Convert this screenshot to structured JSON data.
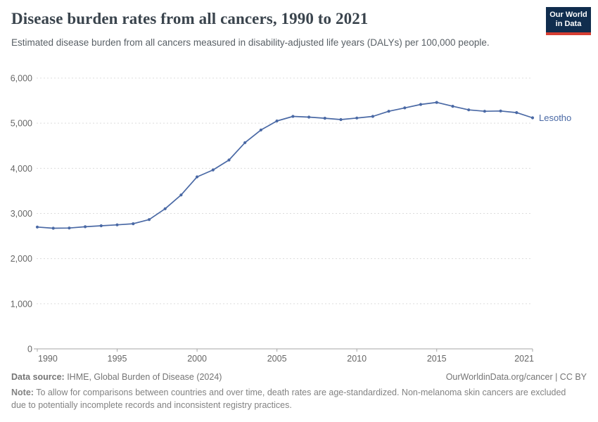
{
  "header": {
    "title": "Disease burden rates from all cancers, 1990 to 2021",
    "subtitle": "Estimated disease burden from all cancers measured in disability-adjusted life years (DALYs) per 100,000 people.",
    "logo": {
      "line1": "Our World",
      "line2": "in Data"
    }
  },
  "chart_data": {
    "type": "line",
    "title": "Disease burden rates from all cancers, 1990 to 2021",
    "entity": "Lesotho",
    "x": [
      1990,
      1991,
      1992,
      1993,
      1994,
      1995,
      1996,
      1997,
      1998,
      1999,
      2000,
      2001,
      2002,
      2003,
      2004,
      2005,
      2006,
      2007,
      2008,
      2009,
      2010,
      2011,
      2012,
      2013,
      2014,
      2015,
      2016,
      2017,
      2018,
      2019,
      2020,
      2021
    ],
    "values": [
      2700,
      2672,
      2678,
      2705,
      2728,
      2748,
      2772,
      2865,
      3105,
      3410,
      3810,
      3965,
      4185,
      4570,
      4850,
      5050,
      5150,
      5135,
      5110,
      5080,
      5115,
      5150,
      5265,
      5340,
      5415,
      5460,
      5375,
      5295,
      5265,
      5270,
      5235,
      5120
    ],
    "xlabel": "",
    "ylabel": "",
    "ylim": [
      0,
      6000
    ],
    "yticks": [
      0,
      1000,
      2000,
      3000,
      4000,
      5000,
      6000
    ],
    "xticks": [
      1990,
      1995,
      2000,
      2005,
      2010,
      2015,
      2021
    ],
    "grid": "horizontal-dashed",
    "legend_position": "end-of-line-label",
    "colors": {
      "line": "#4A69A5",
      "grid": "#DCDCDC",
      "axis": "#A6A6A6",
      "tick_text": "#666666"
    }
  },
  "footer": {
    "datasource_label": "Data source:",
    "datasource_text": " IHME, Global Burden of Disease (2024)",
    "link_text": "OurWorldinData.org/cancer | CC BY",
    "note_label": "Note:",
    "note_text": " To allow for comparisons between countries and over time, death rates are age-standardized. Non-melanoma skin cancers are excluded due to potentially incomplete records and inconsistent registry practices."
  }
}
